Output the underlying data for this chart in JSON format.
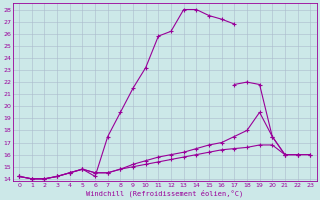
{
  "xlabel": "Windchill (Refroidissement éolien,°C)",
  "bg_color": "#cce8e8",
  "line_color": "#990099",
  "grid_color": "#aabbcc",
  "xlim": [
    -0.5,
    23.5
  ],
  "ylim": [
    13.8,
    28.5
  ],
  "xticks": [
    0,
    1,
    2,
    3,
    4,
    5,
    6,
    7,
    8,
    9,
    10,
    11,
    12,
    13,
    14,
    15,
    16,
    17,
    18,
    19,
    20,
    21,
    22,
    23
  ],
  "yticks": [
    14,
    15,
    16,
    17,
    18,
    19,
    20,
    21,
    22,
    23,
    24,
    25,
    26,
    27,
    28
  ],
  "line1_x": [
    0,
    1,
    2,
    3,
    4,
    5,
    6,
    7,
    8,
    9,
    10,
    11,
    12,
    13,
    14,
    15,
    16,
    17
  ],
  "line1_y": [
    14.2,
    14.0,
    14.0,
    14.2,
    14.5,
    14.8,
    14.2,
    17.5,
    19.5,
    21.5,
    23.2,
    25.8,
    26.2,
    28.0,
    28.0,
    27.5,
    27.2,
    26.8
  ],
  "line2_x": [
    0,
    1,
    2,
    3,
    4,
    5,
    6,
    7,
    8,
    9,
    10,
    11,
    12,
    13,
    14,
    15,
    16,
    17,
    18,
    19,
    20,
    21,
    22
  ],
  "line2_y": [
    14.2,
    14.0,
    14.0,
    14.2,
    14.5,
    14.8,
    14.5,
    14.5,
    14.8,
    15.2,
    15.5,
    15.8,
    16.0,
    16.2,
    16.5,
    16.8,
    17.0,
    17.5,
    18.0,
    19.5,
    17.5,
    16.0,
    16.0
  ],
  "line3_x": [
    0,
    1,
    2,
    3,
    4,
    5,
    6,
    7,
    8,
    9,
    10,
    11,
    12,
    13,
    14,
    15,
    16,
    17,
    18,
    19,
    20,
    21,
    22,
    23
  ],
  "line3_y": [
    14.2,
    14.0,
    14.0,
    14.2,
    14.5,
    14.8,
    14.5,
    14.5,
    14.8,
    15.0,
    15.2,
    15.4,
    15.6,
    15.8,
    16.0,
    16.2,
    16.4,
    16.5,
    16.6,
    16.8,
    16.8,
    16.0,
    16.0,
    16.0
  ],
  "line4_x": [
    17,
    18,
    19,
    20,
    21,
    22,
    23
  ],
  "line4_y": [
    21.8,
    22.0,
    21.8,
    17.5,
    16.0,
    16.0,
    16.0
  ]
}
